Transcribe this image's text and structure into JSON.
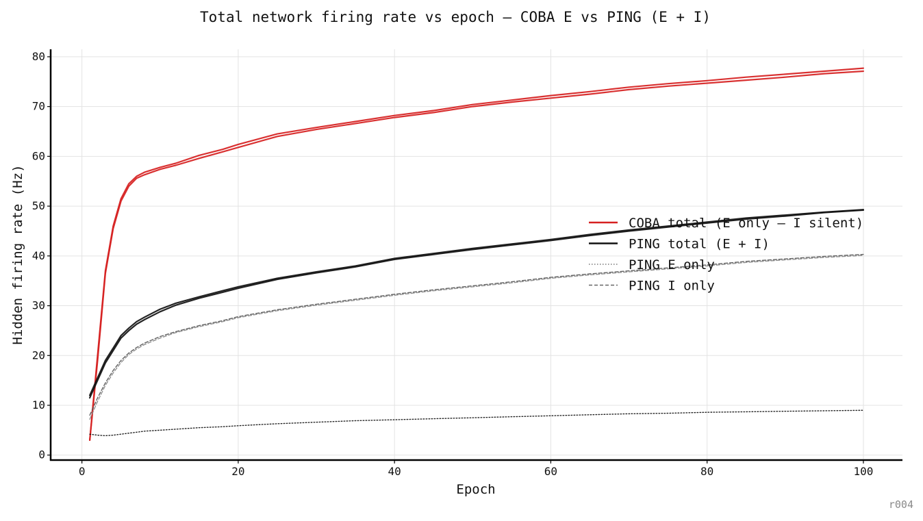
{
  "chart_data": {
    "type": "line",
    "title": "Total network firing rate vs epoch — COBA E vs PING (E + I)",
    "xlabel": "Epoch",
    "ylabel": "Hidden firing rate (Hz)",
    "xlim": [
      -4,
      105
    ],
    "ylim": [
      -1,
      81.5
    ],
    "xticks": [
      0,
      20,
      40,
      60,
      80,
      100
    ],
    "yticks": [
      0,
      10,
      20,
      30,
      40,
      50,
      60,
      70,
      80
    ],
    "grid": true,
    "legend_position": "center-right",
    "legend": [
      {
        "label": "COBA total (E only — I silent)",
        "color": "#d62020",
        "style": "solid"
      },
      {
        "label": "PING total (E + I)",
        "color": "#111111",
        "style": "solid"
      },
      {
        "label": "PING E only",
        "color": "#777777",
        "style": "dotted"
      },
      {
        "label": "PING I only",
        "color": "#666666",
        "style": "dashed"
      }
    ],
    "x": [
      1,
      2,
      3,
      4,
      5,
      6,
      7,
      8,
      10,
      12,
      15,
      18,
      20,
      25,
      30,
      35,
      40,
      45,
      50,
      55,
      60,
      65,
      70,
      75,
      80,
      85,
      90,
      95,
      100
    ],
    "series": [
      {
        "name": "COBA total (E only — I silent)",
        "color": "#d62020",
        "style": "solid",
        "width": 2.2,
        "values": [
          3,
          20,
          37,
          46,
          51.5,
          54.5,
          56,
          56.8,
          57.8,
          58.6,
          60.2,
          61.4,
          62.4,
          64.5,
          65.8,
          67,
          68.2,
          69.2,
          70.4,
          71.3,
          72.2,
          73,
          73.9,
          74.6,
          75.2,
          75.9,
          76.5,
          77.1,
          77.7
        ]
      },
      {
        "name": "",
        "color": "#d62020",
        "style": "solid",
        "width": 2.2,
        "values": [
          3,
          19,
          36.5,
          45.5,
          51,
          54,
          55.6,
          56.3,
          57.4,
          58.2,
          59.6,
          60.9,
          61.8,
          64,
          65.4,
          66.6,
          67.8,
          68.8,
          70,
          70.9,
          71.7,
          72.5,
          73.4,
          74.1,
          74.7,
          75.3,
          75.9,
          76.6,
          77.1
        ]
      },
      {
        "name": "PING total (E + I)",
        "color": "#111111",
        "style": "solid",
        "width": 2.2,
        "values": [
          12,
          15.5,
          19,
          21.5,
          24,
          25.5,
          26.8,
          27.7,
          29.3,
          30.5,
          31.8,
          33,
          33.8,
          35.5,
          36.8,
          38,
          39.5,
          40.5,
          41.5,
          42.4,
          43.3,
          44.3,
          45.2,
          46,
          46.8,
          47.6,
          48.2,
          48.8,
          49.3
        ]
      },
      {
        "name": "",
        "color": "#111111",
        "style": "solid",
        "width": 2.2,
        "values": [
          11.5,
          15,
          18.5,
          21,
          23.5,
          25,
          26.3,
          27.2,
          28.8,
          30.1,
          31.5,
          32.7,
          33.5,
          35.3,
          36.6,
          37.8,
          39.3,
          40.3,
          41.3,
          42.2,
          43.1,
          44.1,
          45,
          45.8,
          46.6,
          47.4,
          48,
          48.7,
          49.2
        ]
      },
      {
        "name": "PING E only",
        "color": "#111111",
        "style": "dotted",
        "width": 1.4,
        "values": [
          4.2,
          4.0,
          3.9,
          4.0,
          4.2,
          4.4,
          4.6,
          4.8,
          5.0,
          5.2,
          5.5,
          5.7,
          5.9,
          6.3,
          6.6,
          6.9,
          7.1,
          7.3,
          7.5,
          7.7,
          7.9,
          8.1,
          8.3,
          8.4,
          8.6,
          8.7,
          8.8,
          8.9,
          9.0
        ]
      },
      {
        "name": "PING I only",
        "color": "#555555",
        "style": "dashed",
        "width": 1.4,
        "values": [
          8,
          11.5,
          14.5,
          17,
          19,
          20.5,
          21.6,
          22.5,
          23.8,
          24.8,
          26,
          27,
          27.8,
          29.2,
          30.3,
          31.3,
          32.3,
          33.2,
          34,
          34.8,
          35.7,
          36.4,
          37,
          37.6,
          38.2,
          38.9,
          39.4,
          39.9,
          40.3
        ]
      },
      {
        "name": "",
        "color": "#888888",
        "style": "dashed",
        "width": 1.4,
        "values": [
          7.2,
          10.8,
          14,
          16.5,
          18.6,
          20.2,
          21.3,
          22.2,
          23.5,
          24.6,
          25.8,
          26.8,
          27.6,
          29,
          30.1,
          31.1,
          32.1,
          33,
          33.8,
          34.6,
          35.5,
          36.2,
          36.8,
          37.4,
          38,
          38.7,
          39.2,
          39.7,
          40.1
        ]
      }
    ]
  },
  "watermark": "r004"
}
